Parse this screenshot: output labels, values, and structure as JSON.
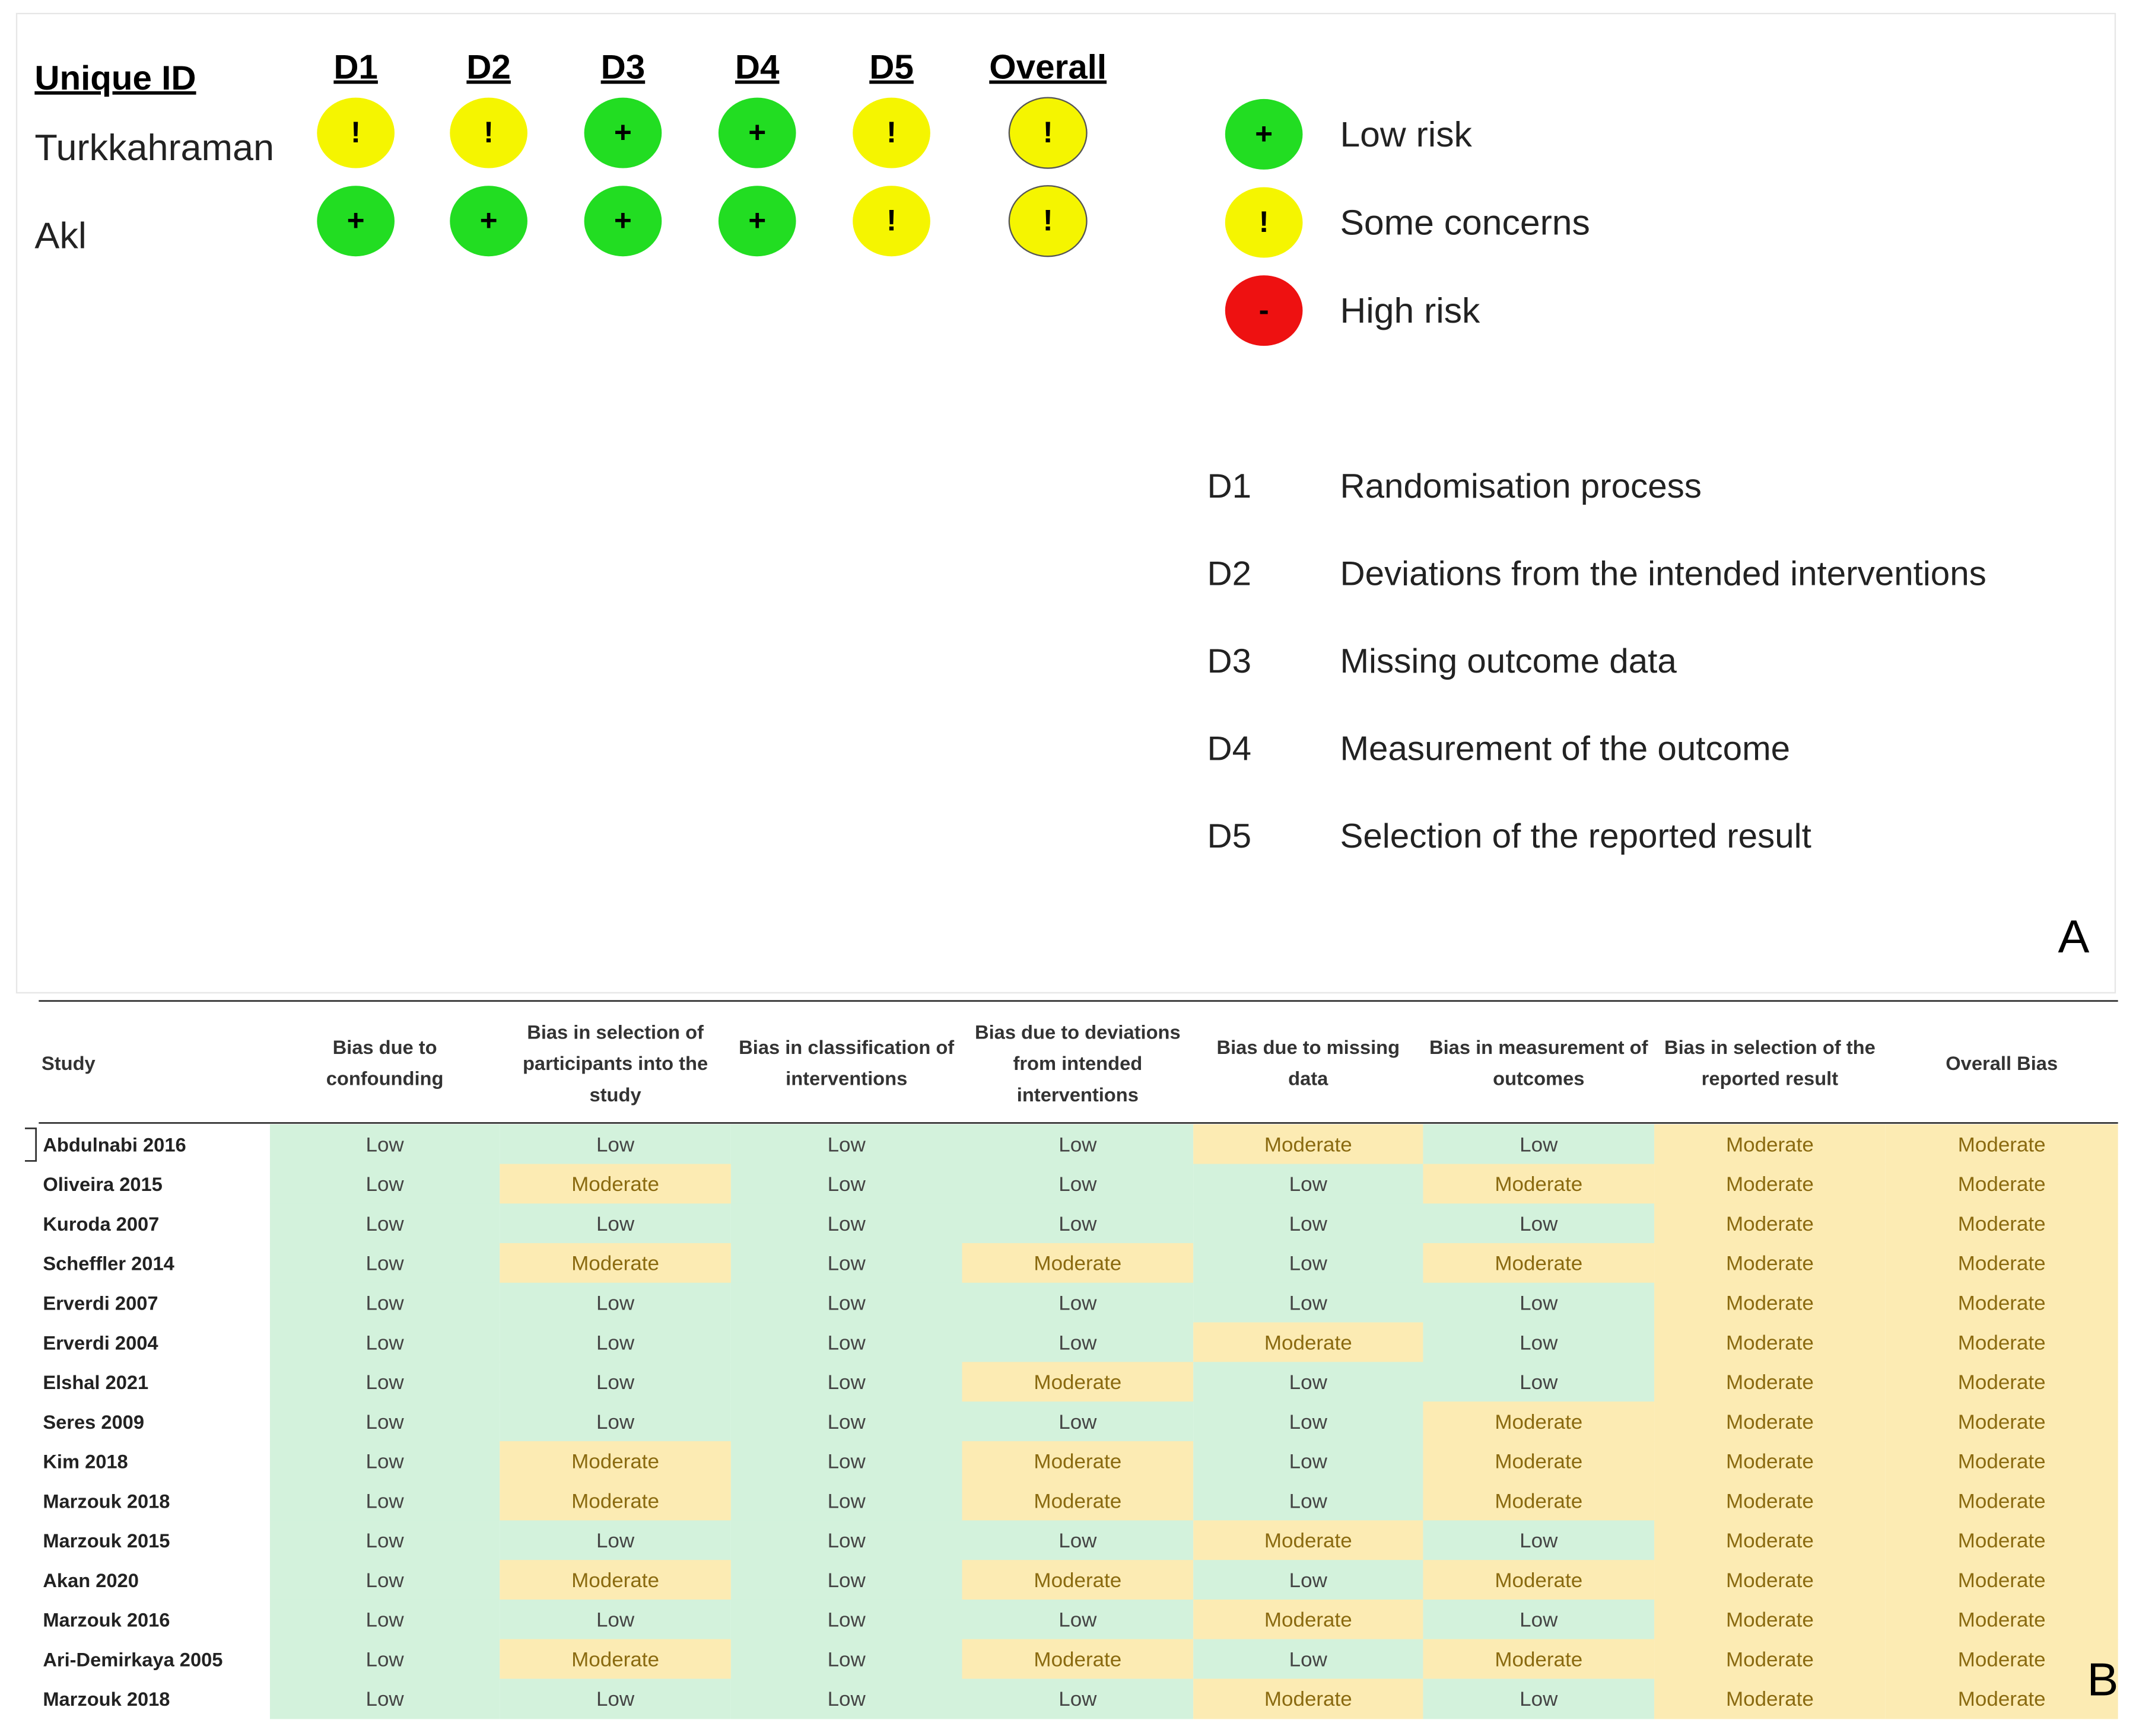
{
  "panel_a": {
    "headers": [
      "Unique ID",
      "D1",
      "D2",
      "D3",
      "D4",
      "D5",
      "Overall"
    ],
    "rows": [
      {
        "id": "Turkkahraman",
        "judgements": [
          "!",
          "!",
          "+",
          "+",
          "!",
          "!"
        ]
      },
      {
        "id": "Akl",
        "judgements": [
          "+",
          "+",
          "+",
          "+",
          "!",
          "!"
        ]
      }
    ],
    "legend": [
      {
        "symbol": "+",
        "label": "Low risk"
      },
      {
        "symbol": "!",
        "label": "Some concerns"
      },
      {
        "symbol": "-",
        "label": "High risk"
      }
    ],
    "domains": [
      {
        "code": "D1",
        "label": "Randomisation process"
      },
      {
        "code": "D2",
        "label": "Deviations from the intended interventions"
      },
      {
        "code": "D3",
        "label": "Missing outcome data"
      },
      {
        "code": "D4",
        "label": "Measurement of the outcome"
      },
      {
        "code": "D5",
        "label": "Selection of the reported result"
      }
    ],
    "panel_label": "A"
  },
  "panel_b": {
    "table": {
      "headers": [
        "Study",
        "Bias due to confounding",
        "Bias in selection of participants into the study",
        "Bias in classification of interventions",
        "Bias due to deviations from intended interventions",
        "Bias due to missing data",
        "Bias in measurement of outcomes",
        "Bias in selection of the reported result",
        "Overall Bias"
      ],
      "rows": [
        [
          "Abdulnabi 2016",
          "Low",
          "Low",
          "Low",
          "Low",
          "Moderate",
          "Low",
          "Moderate",
          "Moderate"
        ],
        [
          "Oliveira 2015",
          "Low",
          "Moderate",
          "Low",
          "Low",
          "Low",
          "Moderate",
          "Moderate",
          "Moderate"
        ],
        [
          "Kuroda 2007",
          "Low",
          "Low",
          "Low",
          "Low",
          "Low",
          "Low",
          "Moderate",
          "Moderate"
        ],
        [
          "Scheffler 2014",
          "Low",
          "Moderate",
          "Low",
          "Moderate",
          "Low",
          "Moderate",
          "Moderate",
          "Moderate"
        ],
        [
          "Erverdi 2007",
          "Low",
          "Low",
          "Low",
          "Low",
          "Low",
          "Low",
          "Moderate",
          "Moderate"
        ],
        [
          "Erverdi 2004",
          "Low",
          "Low",
          "Low",
          "Low",
          "Moderate",
          "Low",
          "Moderate",
          "Moderate"
        ],
        [
          "Elshal 2021",
          "Low",
          "Low",
          "Low",
          "Moderate",
          "Low",
          "Low",
          "Moderate",
          "Moderate"
        ],
        [
          "Seres 2009",
          "Low",
          "Low",
          "Low",
          "Low",
          "Low",
          "Moderate",
          "Moderate",
          "Moderate"
        ],
        [
          "Kim 2018",
          "Low",
          "Moderate",
          "Low",
          "Moderate",
          "Low",
          "Moderate",
          "Moderate",
          "Moderate"
        ],
        [
          "Marzouk 2018",
          "Low",
          "Moderate",
          "Low",
          "Moderate",
          "Low",
          "Moderate",
          "Moderate",
          "Moderate"
        ],
        [
          "Marzouk 2015",
          "Low",
          "Low",
          "Low",
          "Low",
          "Moderate",
          "Low",
          "Moderate",
          "Moderate"
        ],
        [
          "Akan 2020",
          "Low",
          "Moderate",
          "Low",
          "Moderate",
          "Low",
          "Moderate",
          "Moderate",
          "Moderate"
        ],
        [
          "Marzouk 2016",
          "Low",
          "Low",
          "Low",
          "Low",
          "Moderate",
          "Low",
          "Moderate",
          "Moderate"
        ],
        [
          "Ari-Demirkaya 2005",
          "Low",
          "Moderate",
          "Low",
          "Moderate",
          "Low",
          "Moderate",
          "Moderate",
          "Moderate"
        ],
        [
          "Marzouk 2018",
          "Low",
          "Low",
          "Low",
          "Low",
          "Moderate",
          "Low",
          "Moderate",
          "Moderate"
        ]
      ]
    },
    "panel_label": "B"
  }
}
